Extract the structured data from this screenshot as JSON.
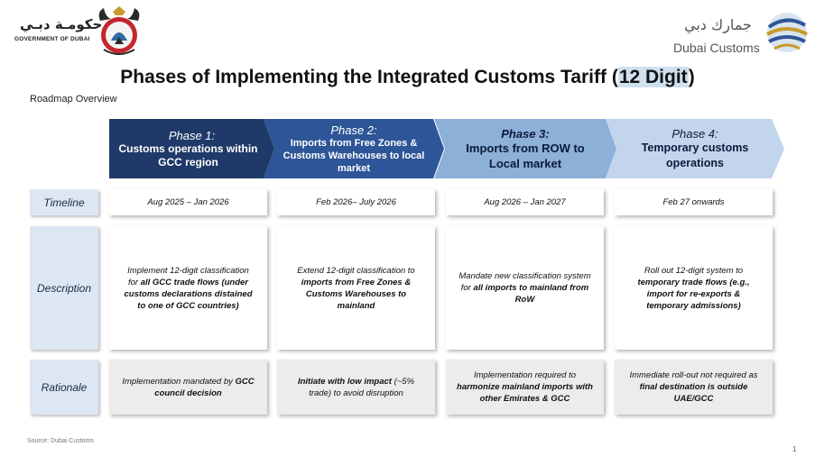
{
  "header": {
    "gov_arabic": "حكومـة دبـي",
    "gov_english": "GOVERNMENT OF DUBAI",
    "customs_arabic": "جمارك دبي",
    "customs_english": "Dubai Customs",
    "crest_icon": "dubai-government-crest",
    "globe_icon": "dubai-customs-globe-logo"
  },
  "title": {
    "main": "Phases of Implementing the Integrated Customs Tariff (",
    "highlight": "12 Digit",
    "end": ")"
  },
  "subtitle": "Roadmap Overview",
  "phases": [
    {
      "phase": "Phase 1:",
      "desc": "Customs operations  within GCC region"
    },
    {
      "phase": "Phase 2:",
      "desc": "Imports from Free Zones  & Customs Warehouses to local market"
    },
    {
      "phase": "Phase 3:",
      "desc": "Imports from ROW to Local market"
    },
    {
      "phase": "Phase 4:",
      "desc": "Temporary customs operations"
    }
  ],
  "row_labels": {
    "timeline": "Timeline",
    "description": "Description",
    "rationale": "Rationale"
  },
  "timeline": [
    "Aug 2025 – Jan 2026",
    "Feb 2026– July 2026",
    "Aug 2026 – Jan 2027",
    "Feb 27 onwards"
  ],
  "description": [
    {
      "a": "Implement 12-digit classification for ",
      "b": "all GCC trade flows",
      "c": " ",
      "d": "(under customs declarations distained to one of GCC countries)",
      "e": ""
    },
    {
      "a": "Extend 12-digit classification to ",
      "b": "imports from Free Zones & Customs Warehouses to mainland",
      "c": "",
      "d": "",
      "e": ""
    },
    {
      "a": "Mandate new classification system for ",
      "b": "all imports to mainland from RoW",
      "c": "",
      "d": "",
      "e": ""
    },
    {
      "a": "Roll out 12-digit system to ",
      "b": "temporary trade flows (e.g., import for re-exports & temporary admissions)",
      "c": "",
      "d": "",
      "e": ""
    }
  ],
  "rationale": [
    {
      "a": "Implementation mandated by ",
      "b": "GCC council decision",
      "c": ""
    },
    {
      "a": "",
      "b": "Initiate with low impact",
      "c": " (~5% trade) to avoid disruption"
    },
    {
      "a": "Implementation required to ",
      "b": "harmonize mainland imports with other Emirates & GCC",
      "c": ""
    },
    {
      "a": "Immediate roll-out not required as ",
      "b": "final destination is outside UAE/GCC",
      "c": ""
    }
  ],
  "footer": {
    "source": "Source: Dubai Customs",
    "page": "1"
  }
}
